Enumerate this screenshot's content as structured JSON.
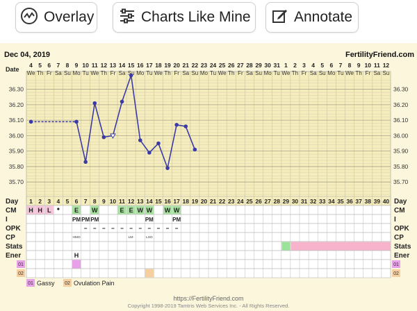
{
  "toolbar": {
    "overlay_label": "Overlay",
    "charts_like_mine_label": "Charts Like Mine",
    "annotate_label": "Annotate"
  },
  "chart_data": {
    "type": "line",
    "title_date": "Dec 04, 2019",
    "site": "FertilityFriend.com",
    "row_labels": {
      "date": "Date",
      "day": "Day",
      "cm": "CM",
      "i": "I",
      "opk": "OPK",
      "cp": "CP",
      "stats": "Stats",
      "ener": "Ener"
    },
    "dates": [
      "4",
      "5",
      "6",
      "7",
      "8",
      "9",
      "10",
      "11",
      "12",
      "13",
      "14",
      "15",
      "16",
      "17",
      "18",
      "19",
      "20",
      "21",
      "22",
      "23",
      "24",
      "25",
      "26",
      "27",
      "28",
      "29",
      "30",
      "31",
      "1",
      "2",
      "3",
      "4",
      "5",
      "6",
      "7",
      "8",
      "9",
      "10",
      "11",
      "12"
    ],
    "weekdays": [
      "We",
      "Th",
      "Fr",
      "Sa",
      "Su",
      "Mo",
      "Tu",
      "We",
      "Th",
      "Fr",
      "Sa",
      "Su",
      "Mo",
      "Tu",
      "We",
      "Th",
      "Fr",
      "Sa",
      "Su",
      "Mo",
      "Tu",
      "We",
      "Th",
      "Fr",
      "Sa",
      "Su",
      "Mo",
      "Tu",
      "We",
      "Th",
      "Fr",
      "Sa",
      "Su",
      "Mo",
      "Tu",
      "We",
      "Th",
      "Fr",
      "Sa",
      "Su"
    ],
    "cycle_days": [
      1,
      2,
      3,
      4,
      5,
      6,
      7,
      8,
      9,
      10,
      11,
      12,
      13,
      14,
      15,
      16,
      17,
      18,
      19,
      20,
      21,
      22,
      23,
      24,
      25,
      26,
      27,
      28,
      29,
      30,
      31,
      32,
      33,
      34,
      35,
      36,
      37,
      38,
      39,
      40
    ],
    "y_ticks": [
      "36.30",
      "36.20",
      "36.10",
      "36.00",
      "35.90",
      "35.80",
      "35.70"
    ],
    "ylim": [
      35.62,
      36.37
    ],
    "temps": [
      36.09,
      null,
      null,
      null,
      null,
      36.09,
      35.83,
      36.21,
      35.99,
      36.0,
      36.22,
      36.39,
      35.97,
      35.89,
      35.95,
      35.79,
      36.07,
      36.06,
      35.91
    ],
    "open_point_days": [
      10
    ],
    "dashed_segments": [
      [
        1,
        6
      ]
    ],
    "cm": {
      "1": "H",
      "2": "H",
      "3": "L",
      "6": "E",
      "8": "W",
      "11": "E",
      "12": "E",
      "13": "W",
      "14": "W",
      "16": "W",
      "17": "W"
    },
    "intercourse": {
      "6": "PM",
      "7": "PM",
      "8": "PM",
      "14": "PM",
      "17": "PM"
    },
    "opk_days": [
      7,
      8,
      9,
      10,
      11,
      12,
      13,
      14,
      15,
      16,
      17
    ],
    "cp": {
      "6": "HMO",
      "12": "LM-",
      "14": "LSO"
    },
    "ener": {
      "6": "H"
    },
    "stats_green_days": [
      29
    ],
    "stats_pink_from_day": 30,
    "custom_rows": [
      {
        "code": "01",
        "color": "#e8a0e8",
        "days": [
          6
        ]
      },
      {
        "code": "02",
        "color": "#f5cfa0",
        "days": [
          14
        ]
      }
    ],
    "legend": [
      {
        "code": "01",
        "label": "Gassy",
        "color": "#e8a0e8"
      },
      {
        "code": "02",
        "label": "Ovulation Pain",
        "color": "#f5cfa0"
      }
    ],
    "footer_url": "https://FertilityFriend.com",
    "footer_copy": "Copyright 1998-2019 Tamtris Web Services Inc. - All Rights Reserved."
  }
}
